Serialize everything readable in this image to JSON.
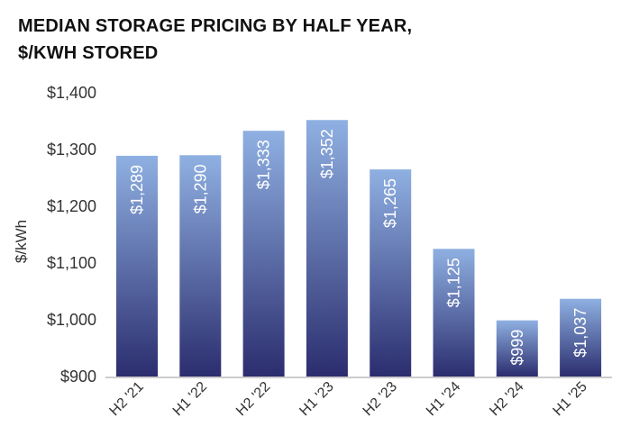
{
  "chart_data": {
    "type": "bar",
    "title_lines": [
      "MEDIAN STORAGE PRICING BY HALF YEAR,",
      "$/KWH STORED"
    ],
    "ylabel": "$/kWh",
    "xlabel": "",
    "ylim": [
      900,
      1400
    ],
    "yticks": [
      900,
      1000,
      1100,
      1200,
      1300,
      1400
    ],
    "ytick_labels": [
      "$900",
      "$1,000",
      "$1,100",
      "$1,200",
      "$1,300",
      "$1,400"
    ],
    "categories": [
      "H2 '21",
      "H1 '22",
      "H2 '22",
      "H1 '23",
      "H2 '23",
      "H1 '24",
      "H2 '24",
      "H1 '25"
    ],
    "values": [
      1289,
      1290,
      1333,
      1352,
      1265,
      1125,
      999,
      1037
    ],
    "data_labels": [
      "$1,289",
      "$1,290",
      "$1,333",
      "$1,352",
      "$1,265",
      "$1,125",
      "$999",
      "$1,037"
    ],
    "grid": false,
    "legend": "none",
    "colors": {
      "bar_top": "#8fb0e2",
      "bar_bottom": "#2b2d6e",
      "axis": "#999999",
      "text": "#333333"
    }
  }
}
